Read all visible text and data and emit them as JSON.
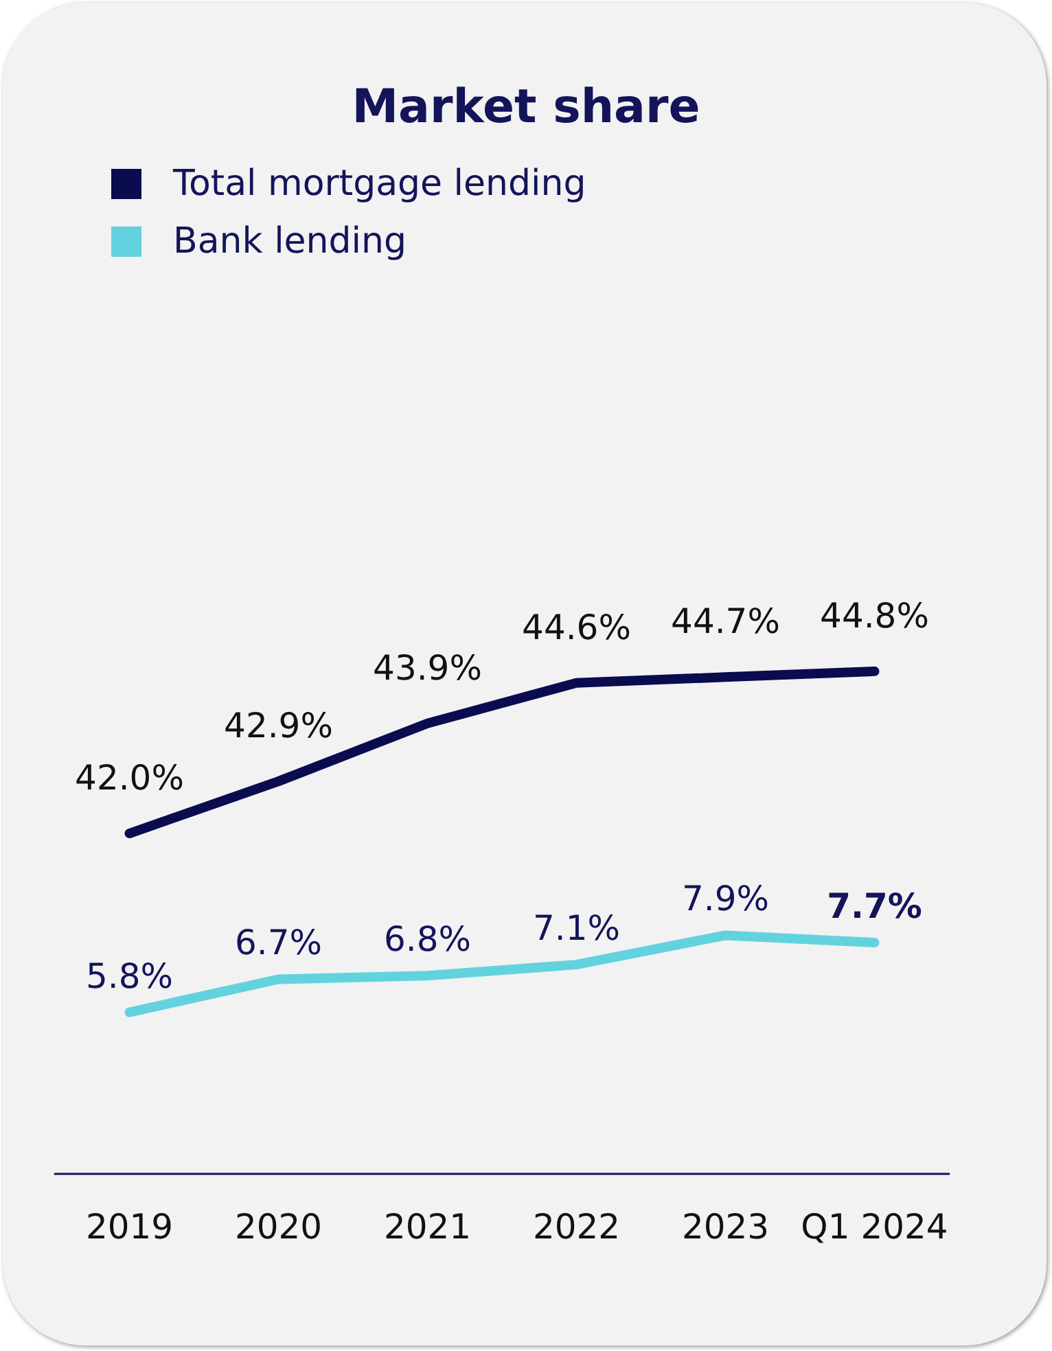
{
  "chart_data": [
    {
      "type": "line",
      "title": "Market share",
      "categories": [
        null,
        null,
        null,
        null,
        null,
        null
      ],
      "series": [
        {
          "name": "Total mortgage lending",
          "color": "#0b0b50",
          "values": [
            42.0,
            42.9,
            43.9,
            44.6,
            44.7,
            44.8
          ],
          "value_labels": [
            "42.0%",
            "42.9%",
            "43.9%",
            "44.6%",
            "44.7%",
            "44.8%"
          ]
        }
      ],
      "legend": "top left",
      "tick_labels": false,
      "line_style": "solid"
    },
    {
      "type": "line",
      "categories": [
        "2019",
        "2020",
        "2021",
        "2022",
        "2023",
        "Q1 2024"
      ],
      "series": [
        {
          "name": "Bank lending",
          "color": "#63d2df",
          "values": [
            5.8,
            6.7,
            6.8,
            7.1,
            7.9,
            7.7
          ],
          "value_labels": [
            "5.8%",
            "6.7%",
            "6.8%",
            "7.1%",
            "7.9%",
            "7.7%"
          ]
        }
      ],
      "legend": "top left",
      "tick_labels": "x",
      "line_style": "solid"
    }
  ]
}
